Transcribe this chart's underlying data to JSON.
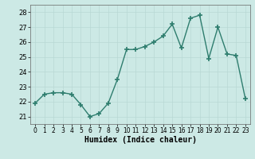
{
  "x": [
    0,
    1,
    2,
    3,
    4,
    5,
    6,
    7,
    8,
    9,
    10,
    11,
    12,
    13,
    14,
    15,
    16,
    17,
    18,
    19,
    20,
    21,
    22,
    23
  ],
  "y": [
    21.9,
    22.5,
    22.6,
    22.6,
    22.5,
    21.8,
    21.0,
    21.2,
    21.9,
    23.5,
    25.5,
    25.5,
    25.7,
    26.0,
    26.4,
    27.2,
    25.6,
    27.6,
    27.8,
    24.9,
    27.0,
    25.2,
    25.1,
    22.2
  ],
  "line_color": "#2e7d6e",
  "marker": "+",
  "marker_size": 5,
  "marker_lw": 1.2,
  "xlabel": "Humidex (Indice chaleur)",
  "ylim": [
    20.5,
    28.5
  ],
  "xlim": [
    -0.5,
    23.5
  ],
  "yticks": [
    21,
    22,
    23,
    24,
    25,
    26,
    27,
    28
  ],
  "xticks": [
    0,
    1,
    2,
    3,
    4,
    5,
    6,
    7,
    8,
    9,
    10,
    11,
    12,
    13,
    14,
    15,
    16,
    17,
    18,
    19,
    20,
    21,
    22,
    23
  ],
  "bg_color": "#cce9e5",
  "grid_color": "#b8d8d4",
  "line_width": 1.0,
  "fig_width": 3.2,
  "fig_height": 2.0,
  "dpi": 100
}
